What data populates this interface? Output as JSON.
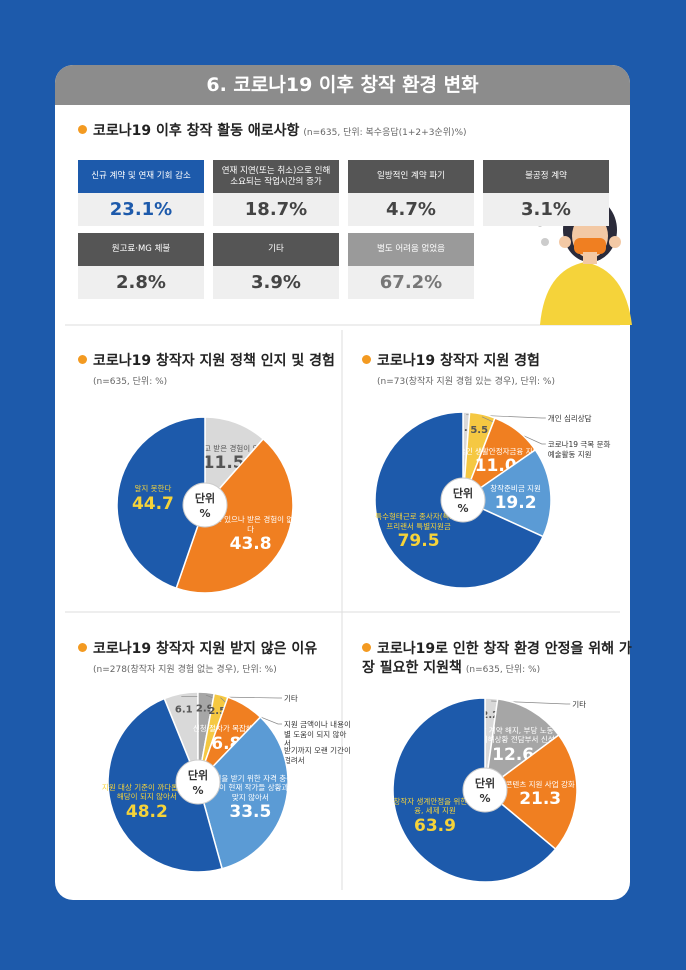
{
  "header": {
    "title": "6. 코로나19 이후 창작 환경 변화"
  },
  "section1": {
    "title": "코로나19 이후 창작 활동 애로사항",
    "subtitle": "(n=635, 단위: 복수응답(1+2+3순위)%)",
    "cards": [
      {
        "label": "신규 계약 및 연재 기회 감소",
        "value": "23.1%",
        "header_color": "#1d5aab"
      },
      {
        "label": "연재 지연(또는 취소)으로 인해 소요되는 작업시간의 증가",
        "value": "18.7%",
        "header_color": "#555555"
      },
      {
        "label": "일방적인 계약 파기",
        "value": "4.7%",
        "header_color": "#555555"
      },
      {
        "label": "불공정 계약",
        "value": "3.1%",
        "header_color": "#555555"
      },
      {
        "label": "원고료·MG 체불",
        "value": "2.8%",
        "header_color": "#555555"
      },
      {
        "label": "기타",
        "value": "3.9%",
        "header_color": "#555555"
      },
      {
        "label": "별도 어려움 없었음",
        "value": "67.2%",
        "header_color": "#9a9a9a"
      }
    ]
  },
  "chart_data": [
    {
      "type": "pie",
      "title": "코로나19 창작자 지원 정책 인지 및 경험",
      "subtitle": "(n=635, 단위: %)",
      "center_label": "단위",
      "center_unit": "%",
      "categories": [
        "알고 있고 받은 경험이 있다",
        "알고 있으나 받은 경험이 없다",
        "알지 못한다"
      ],
      "values": [
        11.5,
        43.8,
        44.7
      ],
      "colors": [
        "#d9d9d9",
        "#f07f21",
        "#1d5aab"
      ]
    },
    {
      "type": "pie",
      "title": "코로나19 창작자 지원 경험",
      "subtitle": "(n=73(창작자 지원 경험 있는 경우), 단위: %)",
      "center_label": "단위",
      "center_unit": "%",
      "categories": [
        "개인 심리상담",
        "코로나19 극복 문화예술활동 지원",
        "예술인 생활안정자금융 지원",
        "창작준비금 지원",
        "특수형태근로 종사자(특고)/ 프리랜서 특별지원금"
      ],
      "values": [
        1.4,
        5.5,
        11.0,
        19.2,
        79.5
      ],
      "value_labels": [
        "1.4",
        "5.5",
        "11.0",
        "19.2",
        "79.5"
      ],
      "colors": [
        "#d9d9d9",
        "#f5c842",
        "#f07f21",
        "#5b9bd5",
        "#1d5aab"
      ]
    },
    {
      "type": "pie",
      "title": "코로나19 창작자 지원 받지 않은 이유",
      "subtitle": "(n=278(창작자 지원 경험 없는 경우), 단위: %)",
      "center_label": "단위",
      "center_unit": "%",
      "categories": [
        "기타",
        "지원 금액이나 내용이 별 도움이 되지 않아서",
        "받기까지 오랜 기간이 걸려서",
        "신청 절차가 복잡해서",
        "지원을 받기 위한 자격 충족 기준이 현재 작가들 상황과는 맞지 않아서",
        "지원 대상 기준이 까다롭거나 해당이 되지 않아서"
      ],
      "values": [
        6.1,
        2.9,
        2.5,
        6.8,
        33.5,
        48.2
      ],
      "colors": [
        "#d9d9d9",
        "#a6a6a6",
        "#f5c842",
        "#f07f21",
        "#5b9bd5",
        "#1d5aab"
      ]
    },
    {
      "type": "pie",
      "title": "코로나19로 인한 창작 환경 안정을 위해 가장 필요한 지원책",
      "subtitle": "(n=635, 단위: %)",
      "center_label": "단위",
      "center_unit": "%",
      "categories": [
        "기타",
        "부당 계약 해지, 부당 노동 등 피해상황 전담부서 신설",
        "콘텐츠 지원 사업 강화",
        "창작자 생계안정을 위한 금융, 세제 지원"
      ],
      "values": [
        2.2,
        12.6,
        21.3,
        63.9
      ],
      "colors": [
        "#d9d9d9",
        "#a6a6a6",
        "#f07f21",
        "#1d5aab"
      ]
    }
  ]
}
